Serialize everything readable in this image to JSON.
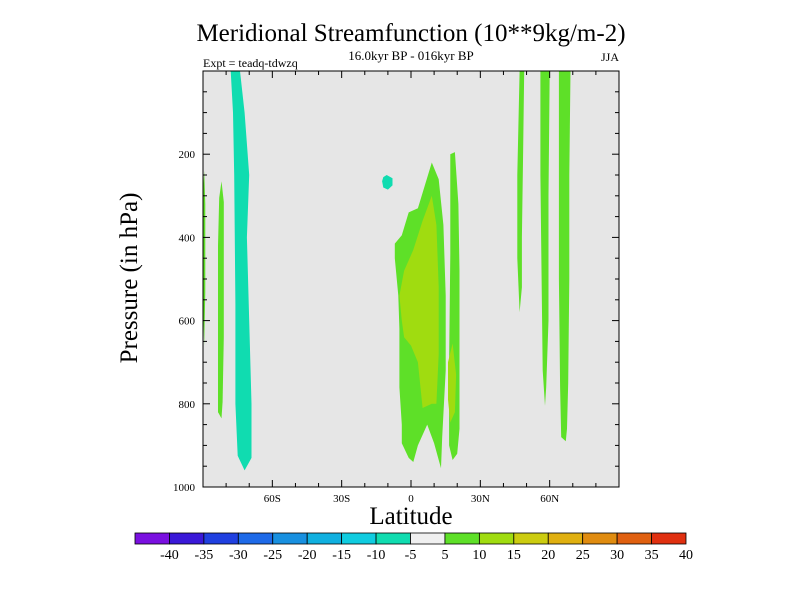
{
  "chart_data": {
    "type": "contour",
    "title": "Meridional Streamfunction (10**9kg/m-2)",
    "subtitle": "16.0kyr BP - 016kyr BP",
    "experiment": "Expt = teadq-tdwzq",
    "season": "JJA",
    "xlabel": "Latitude",
    "ylabel": "Pressure (in hPa)",
    "xlim": [
      -90,
      90
    ],
    "ylim": [
      1000,
      0
    ],
    "x_ticks": [
      {
        "value": -60,
        "label": "60S"
      },
      {
        "value": -30,
        "label": "30S"
      },
      {
        "value": 0,
        "label": "0"
      },
      {
        "value": 30,
        "label": "30N"
      },
      {
        "value": 60,
        "label": "60N"
      }
    ],
    "y_ticks": [
      {
        "value": 200,
        "label": "200"
      },
      {
        "value": 400,
        "label": "400"
      },
      {
        "value": 600,
        "label": "600"
      },
      {
        "value": 800,
        "label": "800"
      },
      {
        "value": 1000,
        "label": "1000"
      }
    ],
    "background_color": "#e6e6e6",
    "contour_levels": [
      -40,
      -35,
      -30,
      -25,
      -20,
      -15,
      -10,
      -5,
      5,
      10,
      15,
      20,
      25,
      30,
      35,
      40
    ],
    "colorbar_labels": [
      "-40",
      "-35",
      "-30",
      "-25",
      "-20",
      "-15",
      "-10",
      "-5",
      "5",
      "10",
      "15",
      "20",
      "25",
      "30",
      "35",
      "40"
    ],
    "colorbar_colors": [
      "#7a10e0",
      "#3a18d8",
      "#2040e0",
      "#1e6ae8",
      "#1890e0",
      "#10b0e0",
      "#10cce0",
      "#10dcb0",
      "#f0f0f0",
      "#5ee028",
      "#a0dc10",
      "#cccc10",
      "#e0b010",
      "#e08c10",
      "#e06010",
      "#e03010"
    ],
    "regions": [
      {
        "name": "sh-cyan-column",
        "level": "-10 to -5",
        "color": "#10dcb0",
        "points": [
          [
            -78,
            0
          ],
          [
            -74,
            0
          ],
          [
            -72,
            100
          ],
          [
            -70,
            250
          ],
          [
            -71,
            400
          ],
          [
            -70,
            600
          ],
          [
            -69,
            800
          ],
          [
            -69,
            930
          ],
          [
            -72,
            960
          ],
          [
            -75,
            925
          ],
          [
            -76,
            800
          ],
          [
            -76,
            560
          ],
          [
            -76.5,
            250
          ],
          [
            -77,
            100
          ]
        ]
      },
      {
        "name": "sh-green-strip",
        "level": "5 to 10",
        "color": "#5ee028",
        "points": [
          [
            -83,
            305
          ],
          [
            -82,
            265
          ],
          [
            -81,
            315
          ],
          [
            -81,
            500
          ],
          [
            -81,
            640
          ],
          [
            -81.5,
            795
          ],
          [
            -82,
            835
          ],
          [
            -83.5,
            820
          ],
          [
            -83.5,
            560
          ],
          [
            -83.5,
            420
          ]
        ]
      },
      {
        "name": "sh-green-edge",
        "level": "5 to 10",
        "color": "#5ee028",
        "points": [
          [
            -90,
            290
          ],
          [
            -89.5,
            240
          ],
          [
            -89,
            320
          ],
          [
            -89,
            530
          ],
          [
            -89.5,
            660
          ],
          [
            -90,
            560
          ]
        ]
      },
      {
        "name": "upper-cyan-blob",
        "level": "-10 to -5",
        "color": "#10dcb0",
        "points": [
          [
            -12,
            255
          ],
          [
            -10.5,
            250
          ],
          [
            -8,
            258
          ],
          [
            -8,
            275
          ],
          [
            -10,
            285
          ],
          [
            -12,
            280
          ],
          [
            -12.5,
            265
          ]
        ]
      },
      {
        "name": "equatorial-green",
        "level": "5 to 10",
        "color": "#5ee028",
        "points": [
          [
            -7,
            415
          ],
          [
            -4,
            395
          ],
          [
            -1,
            340
          ],
          [
            3,
            330
          ],
          [
            9,
            220
          ],
          [
            12,
            260
          ],
          [
            14,
            370
          ],
          [
            15,
            540
          ],
          [
            15,
            720
          ],
          [
            13.5,
            880
          ],
          [
            13,
            955
          ],
          [
            10,
            895
          ],
          [
            7,
            850
          ],
          [
            3,
            900
          ],
          [
            1,
            940
          ],
          [
            -1,
            930
          ],
          [
            -4,
            895
          ],
          [
            -4,
            850
          ],
          [
            -5,
            760
          ],
          [
            -5,
            620
          ],
          [
            -5.5,
            540
          ],
          [
            -7,
            450
          ]
        ]
      },
      {
        "name": "equatorial-green-2",
        "level": "5 to 10",
        "color": "#5ee028",
        "points": [
          [
            17,
            200
          ],
          [
            19,
            195
          ],
          [
            20.5,
            320
          ],
          [
            21,
            480
          ],
          [
            21,
            700
          ],
          [
            21,
            860
          ],
          [
            20,
            920
          ],
          [
            18,
            935
          ],
          [
            16.5,
            900
          ],
          [
            16.5,
            700
          ],
          [
            17,
            440
          ]
        ]
      },
      {
        "name": "equatorial-yellowgreen",
        "level": "10 to 15",
        "color": "#a0dc10",
        "points": [
          [
            -5,
            540
          ],
          [
            -3,
            480
          ],
          [
            1,
            430
          ],
          [
            5,
            360
          ],
          [
            9,
            300
          ],
          [
            11,
            370
          ],
          [
            12,
            520
          ],
          [
            12,
            680
          ],
          [
            11,
            800
          ],
          [
            9,
            800
          ],
          [
            5,
            810
          ],
          [
            3,
            700
          ],
          [
            0,
            660
          ],
          [
            -3,
            640
          ],
          [
            -4,
            600
          ]
        ]
      },
      {
        "name": "equatorial-yellowgreen-2",
        "level": "10 to 15",
        "color": "#a0dc10",
        "points": [
          [
            16,
            700
          ],
          [
            18,
            655
          ],
          [
            19.5,
            730
          ],
          [
            19,
            820
          ],
          [
            17,
            845
          ],
          [
            16,
            790
          ]
        ]
      },
      {
        "name": "nh-green-column-1",
        "level": "5 to 10",
        "color": "#5ee028",
        "points": [
          [
            47,
            0
          ],
          [
            49,
            0
          ],
          [
            48.5,
            200
          ],
          [
            48,
            400
          ],
          [
            48,
            520
          ],
          [
            47,
            580
          ],
          [
            46,
            450
          ],
          [
            46,
            250
          ]
        ]
      },
      {
        "name": "nh-green-column-2",
        "level": "5 to 10",
        "color": "#5ee028",
        "points": [
          [
            56,
            0
          ],
          [
            60,
            0
          ],
          [
            59.5,
            300
          ],
          [
            59.5,
            600
          ],
          [
            58.5,
            760
          ],
          [
            58,
            805
          ],
          [
            57,
            720
          ],
          [
            56.5,
            500
          ],
          [
            56,
            250
          ]
        ]
      },
      {
        "name": "nh-green-column-3",
        "level": "5 to 10",
        "color": "#5ee028",
        "points": [
          [
            64,
            0
          ],
          [
            69,
            0
          ],
          [
            68.5,
            250
          ],
          [
            68.5,
            500
          ],
          [
            68,
            750
          ],
          [
            67.5,
            860
          ],
          [
            67,
            890
          ],
          [
            65,
            880
          ],
          [
            64.5,
            760
          ],
          [
            64,
            500
          ],
          [
            64,
            250
          ]
        ]
      }
    ]
  }
}
